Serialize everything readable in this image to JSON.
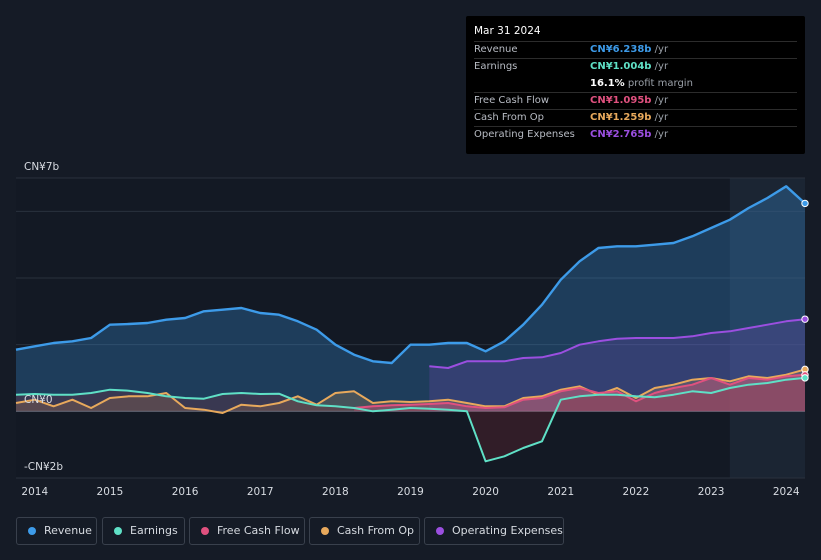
{
  "tooltip": {
    "date": "Mar 31 2024",
    "rows": [
      {
        "label": "Revenue",
        "value": "CN¥6.238b",
        "unit": "/yr",
        "color": "#3d9be9"
      },
      {
        "label": "Earnings",
        "value": "CN¥1.004b",
        "unit": "/yr",
        "color": "#5fe0c6"
      },
      {
        "label": "",
        "value": "16.1%",
        "unit": "profit margin",
        "color": "#ffffff"
      },
      {
        "label": "Free Cash Flow",
        "value": "CN¥1.095b",
        "unit": "/yr",
        "color": "#e0517f"
      },
      {
        "label": "Cash From Op",
        "value": "CN¥1.259b",
        "unit": "/yr",
        "color": "#e8a95c"
      },
      {
        "label": "Operating Expenses",
        "value": "CN¥2.765b",
        "unit": "/yr",
        "color": "#9b4fe0"
      }
    ]
  },
  "legend": [
    {
      "label": "Revenue",
      "color": "#3d9be9"
    },
    {
      "label": "Earnings",
      "color": "#5fe0c6"
    },
    {
      "label": "Free Cash Flow",
      "color": "#e0517f"
    },
    {
      "label": "Cash From Op",
      "color": "#e8a95c"
    },
    {
      "label": "Operating Expenses",
      "color": "#9b4fe0"
    }
  ],
  "chart_data": {
    "type": "area",
    "title": "",
    "y_tick_labels": [
      "CN¥7b",
      "CN¥0",
      "-CN¥2b"
    ],
    "ylim": [
      -2,
      7
    ],
    "xlim": [
      2013.75,
      2024.25
    ],
    "x_ticks": [
      2014,
      2015,
      2016,
      2017,
      2018,
      2019,
      2020,
      2021,
      2022,
      2023,
      2024
    ],
    "x_tick_labels": [
      "2014",
      "2015",
      "2016",
      "2017",
      "2018",
      "2019",
      "2020",
      "2021",
      "2022",
      "2023",
      "2024"
    ],
    "forecast_shade_start": 2023.25,
    "series": [
      {
        "name": "Revenue",
        "color": "#3d9be9",
        "x": [
          2013.75,
          2014.0,
          2014.25,
          2014.5,
          2014.75,
          2015.0,
          2015.25,
          2015.5,
          2015.75,
          2016.0,
          2016.25,
          2016.5,
          2016.75,
          2017.0,
          2017.25,
          2017.5,
          2017.75,
          2018.0,
          2018.25,
          2018.5,
          2018.75,
          2019.0,
          2019.25,
          2019.5,
          2019.75,
          2020.0,
          2020.25,
          2020.5,
          2020.75,
          2021.0,
          2021.25,
          2021.5,
          2021.75,
          2022.0,
          2022.25,
          2022.5,
          2022.75,
          2023.0,
          2023.25,
          2023.5,
          2023.75,
          2024.0,
          2024.25
        ],
        "values": [
          1.85,
          1.95,
          2.05,
          2.1,
          2.2,
          2.6,
          2.62,
          2.65,
          2.75,
          2.8,
          3.0,
          3.05,
          3.1,
          2.95,
          2.9,
          2.7,
          2.45,
          2.0,
          1.7,
          1.5,
          1.45,
          2.0,
          2.0,
          2.05,
          2.05,
          1.8,
          2.1,
          2.6,
          3.2,
          3.95,
          4.5,
          4.9,
          4.95,
          4.95,
          5.0,
          5.05,
          5.25,
          5.5,
          5.75,
          6.1,
          6.4,
          6.75,
          6.238
        ]
      },
      {
        "name": "Earnings",
        "color": "#5fe0c6",
        "x": [
          2013.75,
          2014.0,
          2014.25,
          2014.5,
          2014.75,
          2015.0,
          2015.25,
          2015.5,
          2015.75,
          2016.0,
          2016.25,
          2016.5,
          2016.75,
          2017.0,
          2017.25,
          2017.5,
          2017.75,
          2018.0,
          2018.25,
          2018.5,
          2018.75,
          2019.0,
          2019.25,
          2019.5,
          2019.75,
          2020.0,
          2020.25,
          2020.5,
          2020.75,
          2021.0,
          2021.25,
          2021.5,
          2021.75,
          2022.0,
          2022.25,
          2022.5,
          2022.75,
          2023.0,
          2023.25,
          2023.5,
          2023.75,
          2024.0,
          2024.25
        ],
        "values": [
          0.5,
          0.52,
          0.5,
          0.5,
          0.55,
          0.65,
          0.62,
          0.55,
          0.45,
          0.4,
          0.38,
          0.52,
          0.55,
          0.52,
          0.53,
          0.3,
          0.18,
          0.15,
          0.1,
          0.0,
          0.05,
          0.1,
          0.08,
          0.05,
          0.0,
          -1.5,
          -1.35,
          -1.1,
          -0.9,
          0.35,
          0.45,
          0.5,
          0.5,
          0.45,
          0.42,
          0.5,
          0.6,
          0.55,
          0.7,
          0.8,
          0.85,
          0.95,
          1.004
        ]
      },
      {
        "name": "Free Cash Flow",
        "color": "#e0517f",
        "x": [
          2018.25,
          2018.5,
          2018.75,
          2019.0,
          2019.25,
          2019.5,
          2019.75,
          2020.0,
          2020.25,
          2020.5,
          2020.75,
          2021.0,
          2021.25,
          2021.5,
          2021.75,
          2022.0,
          2022.25,
          2022.5,
          2022.75,
          2023.0,
          2023.25,
          2023.5,
          2023.75,
          2024.0,
          2024.25
        ],
        "values": [
          0.1,
          0.15,
          0.18,
          0.2,
          0.22,
          0.25,
          0.15,
          0.1,
          0.12,
          0.35,
          0.4,
          0.6,
          0.7,
          0.55,
          0.6,
          0.3,
          0.55,
          0.7,
          0.8,
          1.0,
          0.8,
          1.0,
          0.95,
          1.05,
          1.095
        ]
      },
      {
        "name": "Cash From Op",
        "color": "#e8a95c",
        "x": [
          2013.75,
          2014.0,
          2014.25,
          2014.5,
          2014.75,
          2015.0,
          2015.25,
          2015.5,
          2015.75,
          2016.0,
          2016.25,
          2016.5,
          2016.75,
          2017.0,
          2017.25,
          2017.5,
          2017.75,
          2018.0,
          2018.25,
          2018.5,
          2018.75,
          2019.0,
          2019.25,
          2019.5,
          2019.75,
          2020.0,
          2020.25,
          2020.5,
          2020.75,
          2021.0,
          2021.25,
          2021.5,
          2021.75,
          2022.0,
          2022.25,
          2022.5,
          2022.75,
          2023.0,
          2023.25,
          2023.5,
          2023.75,
          2024.0,
          2024.25
        ],
        "values": [
          0.25,
          0.35,
          0.15,
          0.35,
          0.1,
          0.4,
          0.45,
          0.45,
          0.55,
          0.1,
          0.05,
          -0.05,
          0.2,
          0.15,
          0.25,
          0.45,
          0.2,
          0.55,
          0.6,
          0.25,
          0.3,
          0.28,
          0.3,
          0.35,
          0.25,
          0.15,
          0.15,
          0.4,
          0.45,
          0.65,
          0.75,
          0.5,
          0.7,
          0.4,
          0.7,
          0.8,
          0.95,
          1.0,
          0.9,
          1.05,
          1.0,
          1.1,
          1.259
        ]
      },
      {
        "name": "Operating Expenses",
        "color": "#9b4fe0",
        "x": [
          2019.25,
          2019.5,
          2019.75,
          2020.0,
          2020.25,
          2020.5,
          2020.75,
          2021.0,
          2021.25,
          2021.5,
          2021.75,
          2022.0,
          2022.25,
          2022.5,
          2022.75,
          2023.0,
          2023.25,
          2023.5,
          2023.75,
          2024.0,
          2024.25
        ],
        "values": [
          1.35,
          1.3,
          1.5,
          1.5,
          1.5,
          1.6,
          1.62,
          1.75,
          2.0,
          2.1,
          2.18,
          2.2,
          2.2,
          2.2,
          2.25,
          2.35,
          2.4,
          2.5,
          2.6,
          2.7,
          2.765
        ]
      }
    ]
  }
}
